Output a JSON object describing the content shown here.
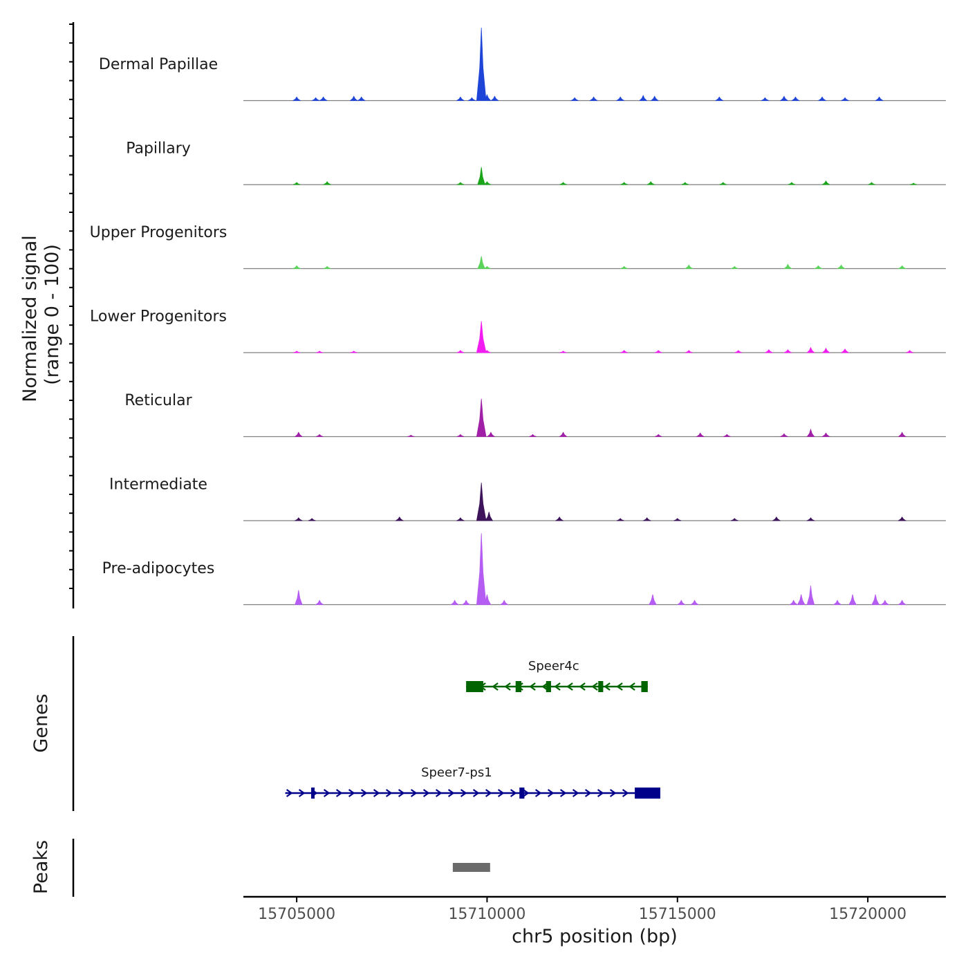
{
  "chart_data": {
    "type": "area",
    "ylabel_line1": "Normalized signal",
    "ylabel_line2": "(range 0 - 100)",
    "xlabel": "chr5 position (bp)",
    "x_range": [
      15703600,
      15722050
    ],
    "x_ticks": [
      {
        "value": 15705000,
        "label": "15705000"
      },
      {
        "value": 15710000,
        "label": "15710000"
      },
      {
        "value": 15715000,
        "label": "15715000"
      },
      {
        "value": 15720000,
        "label": "15720000"
      }
    ],
    "y_range": [
      0,
      100
    ],
    "tracks": [
      {
        "name": "Dermal Papillae",
        "color": "#1f45d8",
        "peaks": [
          [
            15705000,
            5
          ],
          [
            15705500,
            4
          ],
          [
            15705700,
            5
          ],
          [
            15706500,
            6
          ],
          [
            15706700,
            5
          ],
          [
            15709300,
            5
          ],
          [
            15709600,
            4
          ],
          [
            15709850,
            100
          ],
          [
            15710000,
            8
          ],
          [
            15710200,
            6
          ],
          [
            15712300,
            4
          ],
          [
            15712800,
            5
          ],
          [
            15713500,
            5
          ],
          [
            15714100,
            7
          ],
          [
            15714400,
            6
          ],
          [
            15716100,
            5
          ],
          [
            15717300,
            4
          ],
          [
            15717800,
            6
          ],
          [
            15718100,
            5
          ],
          [
            15718800,
            5
          ],
          [
            15719400,
            4
          ],
          [
            15720300,
            5
          ]
        ]
      },
      {
        "name": "Papillary",
        "color": "#1aa51a",
        "peaks": [
          [
            15705000,
            3
          ],
          [
            15705800,
            4
          ],
          [
            15709300,
            3
          ],
          [
            15709850,
            24
          ],
          [
            15710000,
            4
          ],
          [
            15712000,
            3
          ],
          [
            15713600,
            3
          ],
          [
            15714300,
            4
          ],
          [
            15715200,
            3
          ],
          [
            15716200,
            3
          ],
          [
            15718000,
            3
          ],
          [
            15718900,
            5
          ],
          [
            15720100,
            3
          ],
          [
            15721200,
            2
          ]
        ]
      },
      {
        "name": "Upper Progenitors",
        "color": "#5ad45a",
        "peaks": [
          [
            15705000,
            4
          ],
          [
            15705800,
            3
          ],
          [
            15709850,
            17
          ],
          [
            15710000,
            3
          ],
          [
            15713600,
            3
          ],
          [
            15715300,
            5
          ],
          [
            15716500,
            3
          ],
          [
            15717900,
            6
          ],
          [
            15718700,
            4
          ],
          [
            15719300,
            5
          ],
          [
            15720900,
            4
          ]
        ]
      },
      {
        "name": "Lower Progenitors",
        "color": "#f21cf2",
        "peaks": [
          [
            15705000,
            2
          ],
          [
            15705600,
            2
          ],
          [
            15706500,
            2
          ],
          [
            15709300,
            3
          ],
          [
            15709850,
            43
          ],
          [
            15710000,
            3
          ],
          [
            15712000,
            2
          ],
          [
            15713600,
            3
          ],
          [
            15714500,
            3
          ],
          [
            15715300,
            3
          ],
          [
            15716600,
            3
          ],
          [
            15717400,
            4
          ],
          [
            15717900,
            4
          ],
          [
            15718500,
            7
          ],
          [
            15718900,
            6
          ],
          [
            15719400,
            5
          ],
          [
            15721100,
            3
          ]
        ]
      },
      {
        "name": "Reticular",
        "color": "#a020a8",
        "peaks": [
          [
            15705050,
            6
          ],
          [
            15705600,
            3
          ],
          [
            15708000,
            2
          ],
          [
            15709300,
            3
          ],
          [
            15709850,
            52
          ],
          [
            15710100,
            6
          ],
          [
            15711200,
            3
          ],
          [
            15712000,
            6
          ],
          [
            15714500,
            3
          ],
          [
            15715600,
            5
          ],
          [
            15716300,
            3
          ],
          [
            15717800,
            4
          ],
          [
            15718500,
            10
          ],
          [
            15718900,
            5
          ],
          [
            15720900,
            6
          ]
        ]
      },
      {
        "name": "Intermediate",
        "color": "#3d145c",
        "peaks": [
          [
            15705050,
            4
          ],
          [
            15705400,
            3
          ],
          [
            15707700,
            5
          ],
          [
            15709300,
            4
          ],
          [
            15709850,
            52
          ],
          [
            15710050,
            12
          ],
          [
            15711900,
            5
          ],
          [
            15713500,
            3
          ],
          [
            15714200,
            4
          ],
          [
            15715000,
            3
          ],
          [
            15716500,
            3
          ],
          [
            15717600,
            5
          ],
          [
            15718500,
            4
          ],
          [
            15720900,
            5
          ]
        ]
      },
      {
        "name": "Pre-adipocytes",
        "color": "#b55cf2",
        "peaks": [
          [
            15705050,
            20
          ],
          [
            15705600,
            6
          ],
          [
            15709150,
            6
          ],
          [
            15709450,
            6
          ],
          [
            15709850,
            98
          ],
          [
            15710000,
            14
          ],
          [
            15710450,
            6
          ],
          [
            15714350,
            14
          ],
          [
            15715100,
            6
          ],
          [
            15715450,
            6
          ],
          [
            15718050,
            6
          ],
          [
            15718250,
            14
          ],
          [
            15718500,
            26
          ],
          [
            15719200,
            6
          ],
          [
            15719600,
            14
          ],
          [
            15720200,
            14
          ],
          [
            15720450,
            6
          ],
          [
            15720900,
            6
          ]
        ]
      }
    ],
    "genes": [
      {
        "name": "Speer4c",
        "strand": "-",
        "color": "#006400",
        "start": 15709450,
        "end": 15714220,
        "exons": [
          [
            15709450,
            15709900
          ],
          [
            15710750,
            15710900
          ],
          [
            15711550,
            15711680
          ],
          [
            15712920,
            15713050
          ],
          [
            15714050,
            15714220
          ]
        ]
      },
      {
        "name": "Speer7-ps1",
        "strand": "+",
        "color": "#00008b",
        "start": 15704700,
        "end": 15714550,
        "exons": [
          [
            15705380,
            15705420
          ],
          [
            15710850,
            15710980
          ],
          [
            15713880,
            15714550
          ]
        ]
      }
    ],
    "peaks_track": [
      [
        15709100,
        15710080
      ]
    ],
    "track_labels": {
      "genes": "Genes",
      "peaks": "Peaks"
    }
  }
}
